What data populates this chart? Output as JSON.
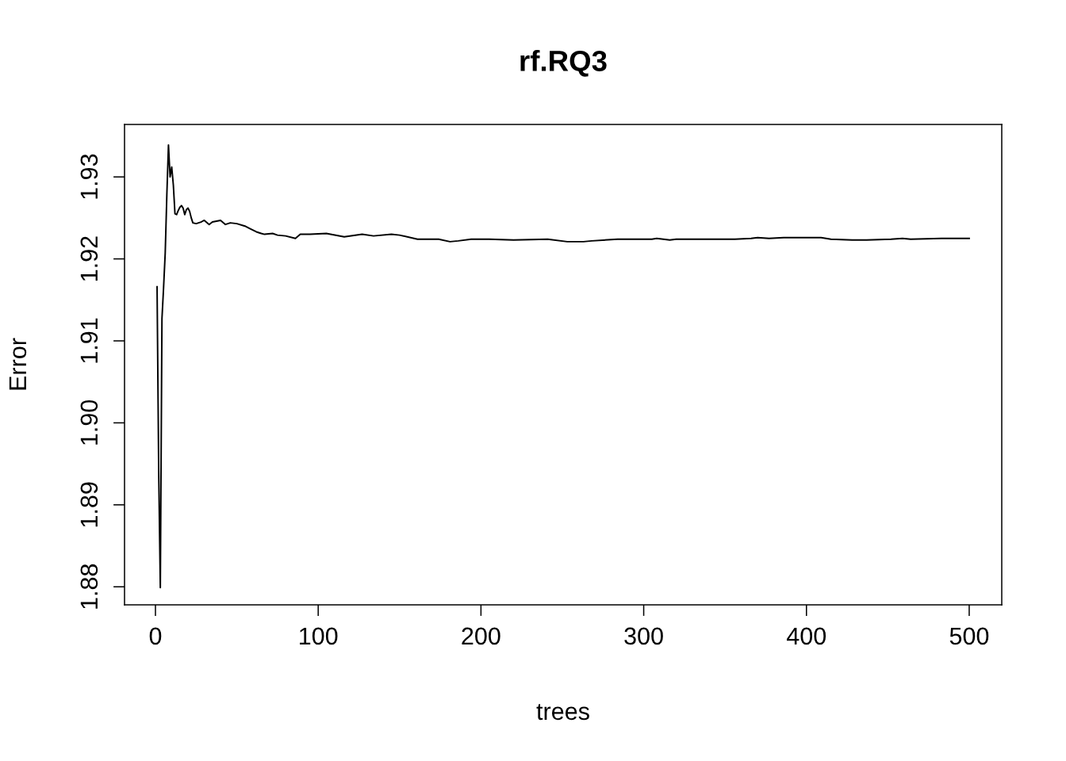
{
  "chart_data": {
    "type": "line",
    "title": "rf.RQ3",
    "xlabel": "trees",
    "ylabel": "Error",
    "x": [
      1,
      2,
      3,
      4,
      5,
      6,
      7,
      8,
      9,
      10,
      11,
      12,
      13,
      14,
      15,
      16,
      17,
      18,
      19,
      20,
      21,
      22,
      23,
      25,
      28,
      30,
      33,
      35,
      40,
      43,
      46,
      50,
      55,
      58,
      60,
      62,
      65,
      67,
      72,
      75,
      80,
      86,
      89,
      95,
      105,
      116,
      127,
      134,
      145,
      150,
      161,
      174,
      181,
      186,
      194,
      205,
      220,
      241,
      253,
      263,
      268,
      284,
      305,
      308,
      316,
      320,
      343,
      356,
      366,
      370,
      377,
      386,
      409,
      415,
      428,
      437,
      452,
      459,
      464,
      483,
      500
    ],
    "series": [
      {
        "color": "#000000",
        "values": [
          1.9166,
          1.8941,
          1.8799,
          1.9127,
          1.9165,
          1.9207,
          1.9278,
          1.9339,
          1.93,
          1.9312,
          1.929,
          1.9255,
          1.9254,
          1.9259,
          1.9263,
          1.9265,
          1.9262,
          1.9254,
          1.926,
          1.9262,
          1.9258,
          1.925,
          1.9244,
          1.9243,
          1.9245,
          1.9247,
          1.9242,
          1.9245,
          1.9247,
          1.9242,
          1.9244,
          1.9243,
          1.924,
          1.9237,
          1.9235,
          1.9233,
          1.9231,
          1.923,
          1.9231,
          1.9229,
          1.9228,
          1.9225,
          1.923,
          1.923,
          1.9231,
          1.9227,
          1.923,
          1.9228,
          1.923,
          1.9229,
          1.9224,
          1.9224,
          1.9221,
          1.9222,
          1.9224,
          1.9224,
          1.9223,
          1.9224,
          1.9221,
          1.9221,
          1.9222,
          1.9224,
          1.9224,
          1.9225,
          1.9223,
          1.9224,
          1.9224,
          1.9224,
          1.9225,
          1.9226,
          1.9225,
          1.9226,
          1.9226,
          1.9224,
          1.9223,
          1.9223,
          1.9224,
          1.9225,
          1.9224,
          1.9225,
          1.9225
        ]
      }
    ],
    "xlim": [
      -19,
      520
    ],
    "ylim": [
      1.8778,
      1.9364
    ],
    "xticks": [
      0,
      100,
      200,
      300,
      400,
      500
    ],
    "yticks": [
      1.88,
      1.89,
      {
        "value": 1.9,
        "label": "1.90"
      },
      1.91,
      1.92,
      1.93
    ],
    "grid": false,
    "legend": false,
    "marker": "none",
    "line_style": "solid"
  }
}
